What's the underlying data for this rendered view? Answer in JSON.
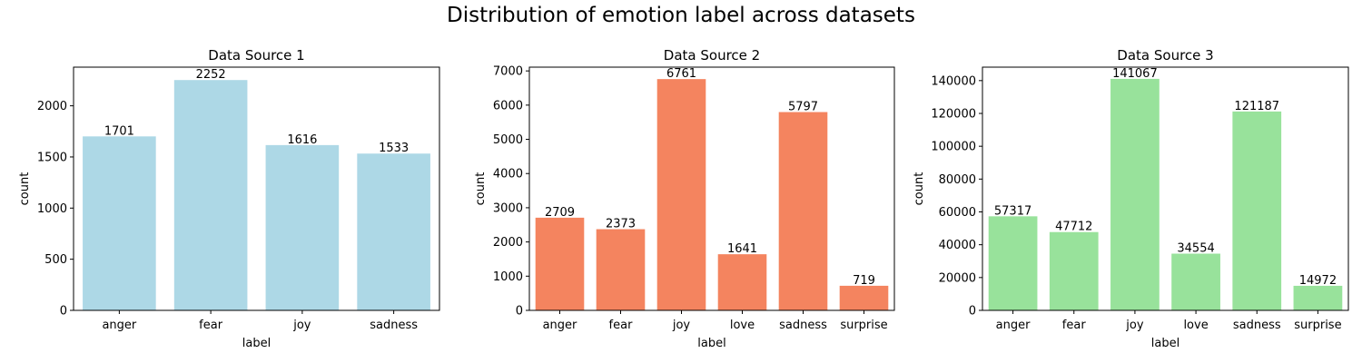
{
  "figure": {
    "title": "Distribution of emotion label across datasets"
  },
  "chart_data": [
    {
      "type": "bar",
      "title": "Data Source 1",
      "xlabel": "label",
      "ylabel": "count",
      "categories": [
        "anger",
        "fear",
        "joy",
        "sadness"
      ],
      "values": [
        1701,
        2252,
        1616,
        1533
      ],
      "data_labels": [
        "1701",
        "2252",
        "1616",
        "1533"
      ],
      "ylim": [
        0,
        2378
      ],
      "yticks": [
        0,
        500,
        1000,
        1500,
        2000
      ],
      "color": "#add8e6",
      "grid": false,
      "legend": "none"
    },
    {
      "type": "bar",
      "title": "Data Source 2",
      "xlabel": "label",
      "ylabel": "count",
      "categories": [
        "anger",
        "fear",
        "joy",
        "love",
        "sadness",
        "surprise"
      ],
      "values": [
        2709,
        2373,
        6761,
        1641,
        5797,
        719
      ],
      "data_labels": [
        "2709",
        "2373",
        "6761",
        "1641",
        "5797",
        "719"
      ],
      "ylim": [
        0,
        7110
      ],
      "yticks": [
        0,
        1000,
        2000,
        3000,
        4000,
        5000,
        6000,
        7000
      ],
      "color": "#f4845f",
      "grid": false,
      "legend": "none"
    },
    {
      "type": "bar",
      "title": "Data Source 3",
      "xlabel": "label",
      "ylabel": "count",
      "categories": [
        "anger",
        "fear",
        "joy",
        "love",
        "sadness",
        "surprise"
      ],
      "values": [
        57317,
        47712,
        141067,
        34554,
        121187,
        14972
      ],
      "data_labels": [
        "57317",
        "47712",
        "141067",
        "34554",
        "121187",
        "14972"
      ],
      "ylim": [
        0,
        148200
      ],
      "yticks": [
        0,
        20000,
        40000,
        60000,
        80000,
        100000,
        120000,
        140000
      ],
      "color": "#98e29b",
      "grid": false,
      "legend": "none"
    }
  ]
}
